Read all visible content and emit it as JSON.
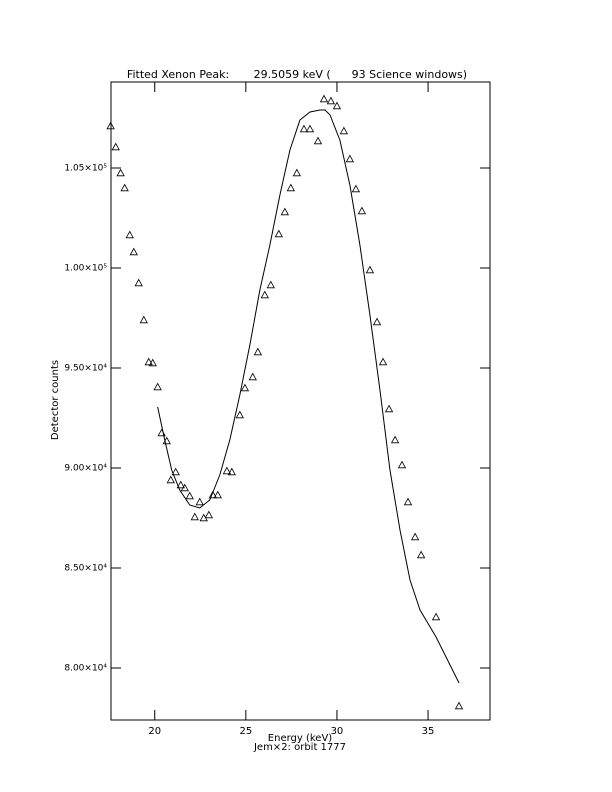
{
  "chart_data": {
    "type": "scatter",
    "title": "Fitted Xenon Peak:       29.5059 keV (      93 Science windows)",
    "xlabel": "Energy (keV)",
    "subtitle": "Jem×2: orbit 1777",
    "ylabel": "Detector counts",
    "xlim": [
      17.6,
      38.4
    ],
    "ylim": [
      77400,
      109300
    ],
    "xticks": [
      20,
      25,
      30,
      35
    ],
    "yticks": [
      {
        "value": 80000,
        "label": "8.00×10⁴"
      },
      {
        "value": 85000,
        "label": "8.50×10⁴"
      },
      {
        "value": 90000,
        "label": "9.00×10⁴"
      },
      {
        "value": 95000,
        "label": "9.50×10⁴"
      },
      {
        "value": 100000,
        "label": "1.00×10⁵"
      },
      {
        "value": 105000,
        "label": "1.05×10⁵"
      }
    ],
    "series": [
      {
        "style": "markers",
        "marker": "triangle",
        "color": "#000000",
        "x": [
          17.58,
          17.86,
          18.13,
          18.35,
          18.63,
          18.85,
          19.12,
          19.4,
          19.67,
          19.89,
          20.16,
          20.38,
          20.66,
          20.88,
          21.15,
          21.43,
          21.65,
          21.92,
          22.2,
          22.47,
          22.69,
          22.97,
          23.19,
          23.46,
          23.96,
          24.23,
          24.67,
          24.95,
          25.38,
          25.66,
          26.04,
          26.37,
          26.81,
          27.14,
          27.47,
          27.8,
          28.19,
          28.52,
          28.96,
          29.29,
          29.67,
          30.0,
          30.38,
          30.71,
          31.04,
          31.37,
          31.81,
          32.2,
          32.53,
          32.86,
          33.19,
          33.57,
          33.9,
          34.29,
          34.62,
          35.44,
          36.7
        ],
        "values": [
          107100,
          106050,
          104750,
          104000,
          101650,
          100800,
          99250,
          97400,
          95300,
          95250,
          94050,
          91750,
          91350,
          89400,
          89800,
          89150,
          89000,
          88600,
          87550,
          88300,
          87500,
          87650,
          88650,
          88650,
          89850,
          89800,
          92650,
          94000,
          94550,
          95800,
          98650,
          99150,
          101700,
          102800,
          104000,
          104750,
          106950,
          106950,
          106350,
          108450,
          108350,
          108100,
          106850,
          105450,
          103950,
          102850,
          99900,
          97300,
          95300,
          92950,
          91400,
          90150,
          88300,
          86550,
          85650,
          82550,
          78100
        ]
      },
      {
        "style": "line",
        "color": "#000000",
        "x": [
          20.16,
          20.55,
          20.93,
          21.37,
          21.92,
          22.47,
          23.02,
          23.57,
          24.12,
          24.67,
          25.22,
          25.77,
          26.32,
          26.87,
          27.42,
          27.97,
          28.52,
          29.07,
          29.35,
          29.62,
          30.16,
          30.71,
          31.26,
          31.81,
          32.36,
          32.91,
          33.46,
          34.01,
          34.56,
          35.44,
          36.7
        ],
        "values": [
          93050,
          91400,
          89900,
          88900,
          88150,
          88000,
          88400,
          89650,
          91400,
          93650,
          96150,
          98900,
          101150,
          103650,
          105900,
          107400,
          107800,
          107900,
          107900,
          107650,
          106400,
          104150,
          101150,
          97650,
          93900,
          89900,
          86900,
          84400,
          82900,
          81550,
          79250
        ]
      }
    ]
  }
}
